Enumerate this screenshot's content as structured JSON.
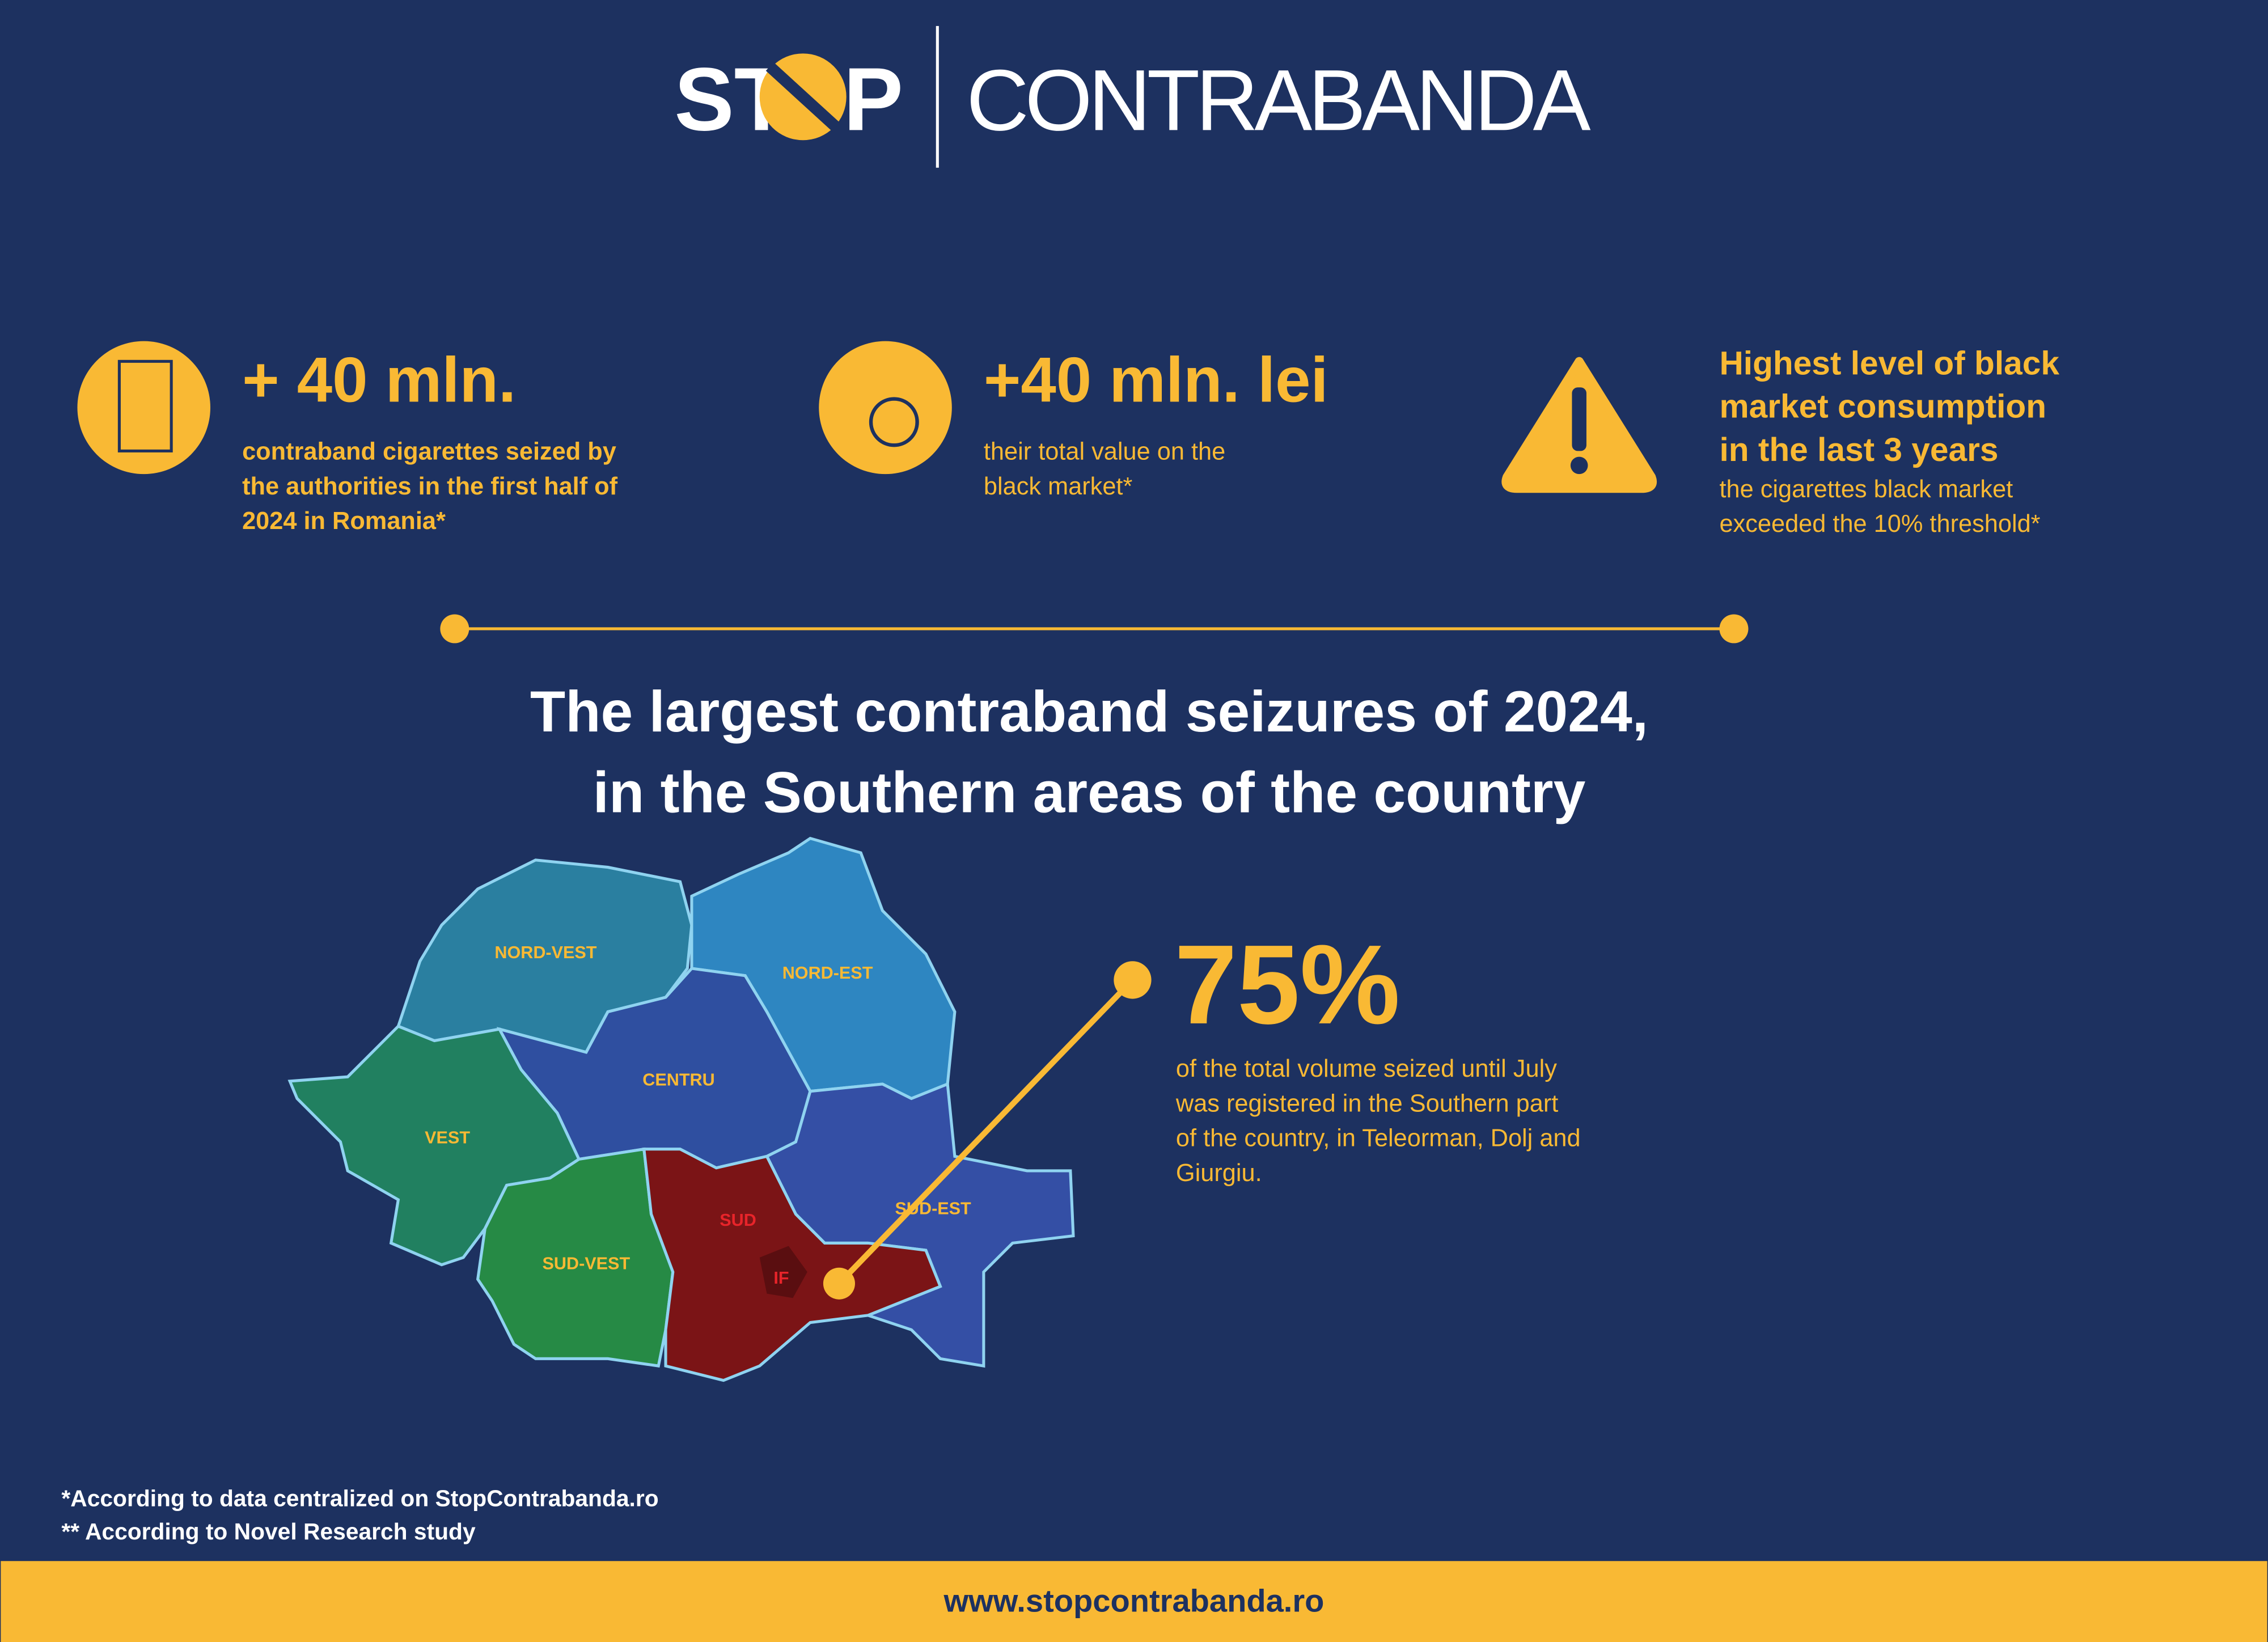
{
  "header": {
    "logo_left": "ST",
    "logo_right": "P",
    "wordmark": "CONTRABANDA"
  },
  "stats": [
    {
      "headline": "+ 40 mln.",
      "lines": [
        "contraband cigarettes seized by",
        "the authorities in the first half of",
        "2024 in Romania*"
      ]
    },
    {
      "headline": "+40 mln. lei",
      "lines": [
        "their total value on the",
        "black market*"
      ]
    },
    {
      "headline_lines": [
        "Highest level of black",
        "market consumption",
        "in the last 3 years"
      ],
      "lines": [
        "the cigarettes black market",
        "exceeded the 10% threshold*"
      ]
    }
  ],
  "section_title": [
    "The largest contraband seizures of 2024,",
    "in the Southern areas of the country"
  ],
  "map": {
    "regions": [
      "NORD-VEST",
      "NORD-EST",
      "CENTRU",
      "VEST",
      "SUD-VEST",
      "SUD",
      "SUD-EST",
      "IF"
    ]
  },
  "highlight": {
    "value": "75%",
    "lines": [
      "of the total volume seized until July",
      "was registered in the Southern part",
      "of the country, in Teleorman, Dolj and",
      "Giurgiu."
    ]
  },
  "footnotes": [
    "*According to data centralized on StopContrabanda.ro",
    "** According to Novel Research study"
  ],
  "footer": {
    "url": "www.stopcontrabanda.ro"
  }
}
